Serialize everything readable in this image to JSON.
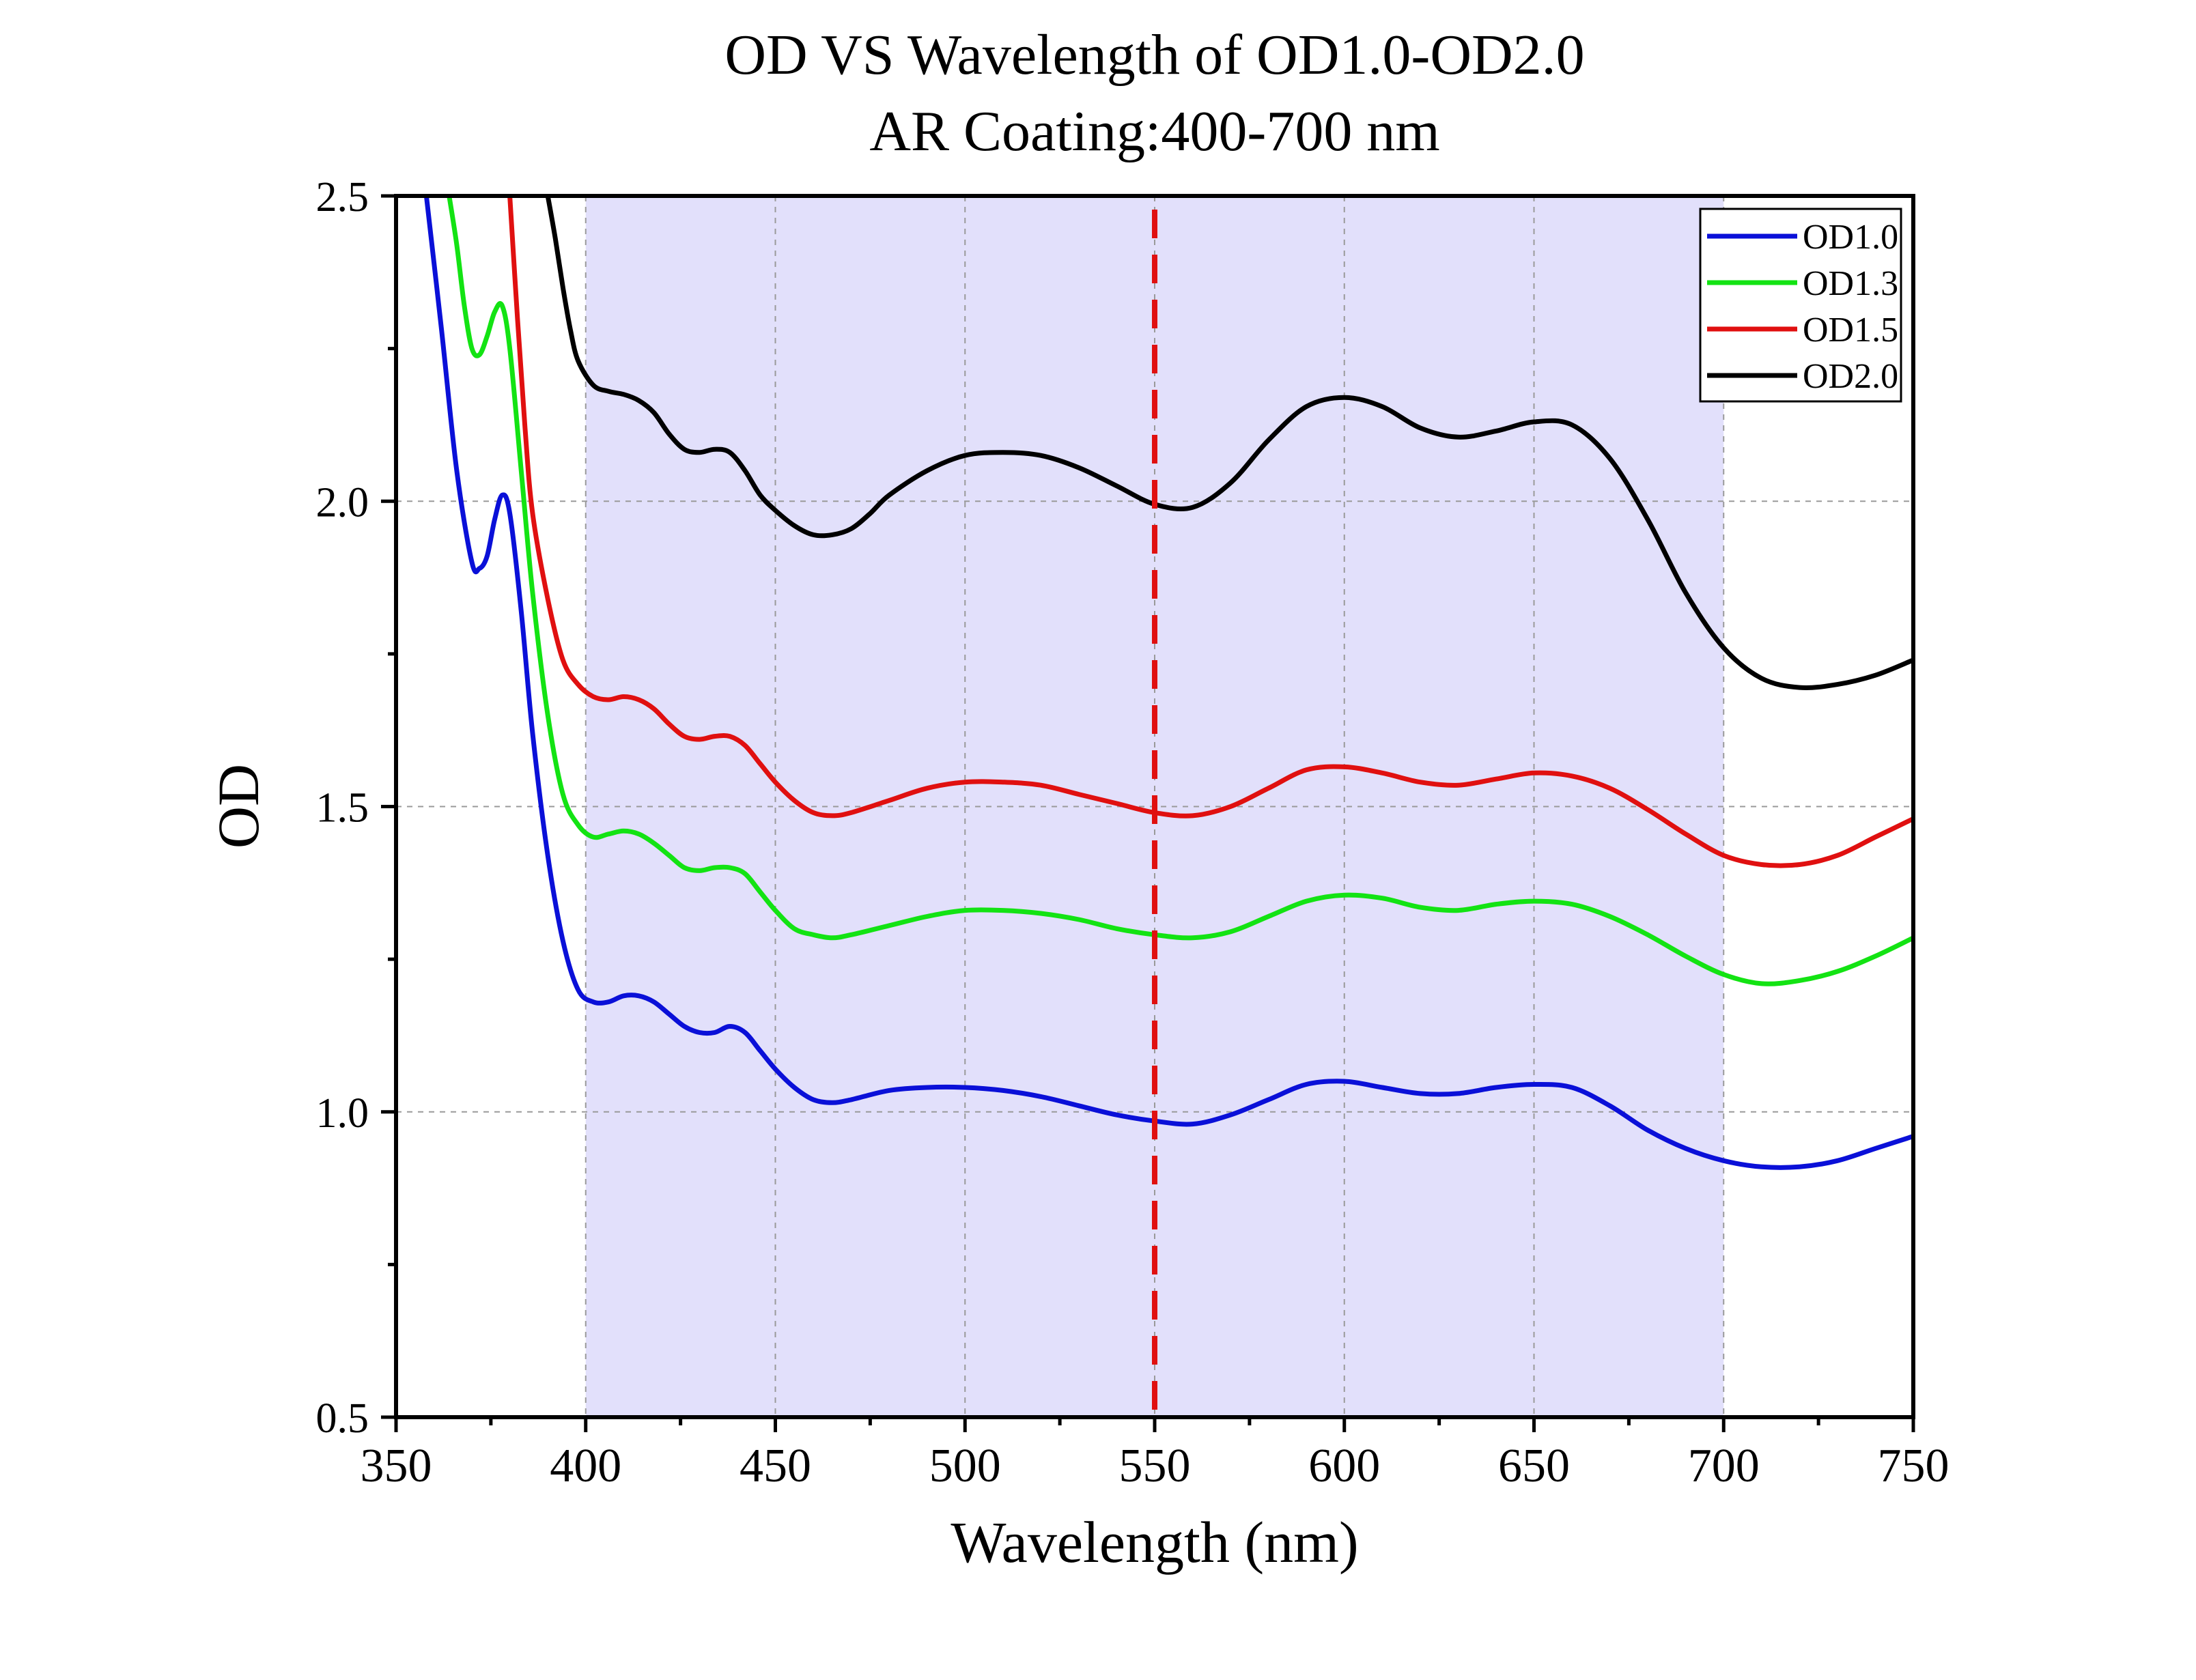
{
  "chart_data": {
    "type": "line",
    "title": "OD VS Wavelength of OD1.0-OD2.0",
    "subtitle": "AR Coating:400-700 nm",
    "xlabel": "Wavelength (nm)",
    "ylabel": "OD",
    "xlim": [
      350,
      750
    ],
    "ylim": [
      0.5,
      2.5
    ],
    "xticks": [
      "350",
      "400",
      "450",
      "500",
      "550",
      "600",
      "650",
      "700",
      "750"
    ],
    "yticks": [
      "0.5",
      "1.0",
      "1.5",
      "2.0",
      "2.5"
    ],
    "grid": true,
    "legend_position": "top-right",
    "shaded_range": [
      400,
      700
    ],
    "shaded_color": "#e2e0fb",
    "marker_line": {
      "x": 550,
      "color": "#e01010",
      "style": "dashed"
    },
    "series": [
      {
        "name": "OD1.0",
        "color": "#0a10d8",
        "x": [
          358,
          362,
          366,
          370,
          372,
          374,
          376,
          378,
          380,
          383,
          386,
          390,
          394,
          398,
          402,
          406,
          410,
          414,
          418,
          422,
          426,
          430,
          434,
          438,
          442,
          446,
          450,
          455,
          460,
          465,
          470,
          480,
          490,
          500,
          510,
          520,
          530,
          540,
          550,
          560,
          570,
          580,
          590,
          600,
          610,
          620,
          630,
          640,
          650,
          660,
          670,
          680,
          690,
          700,
          710,
          720,
          730,
          740,
          750
        ],
        "y": [
          2.5,
          2.28,
          2.05,
          1.9,
          1.89,
          1.91,
          1.97,
          2.01,
          1.98,
          1.82,
          1.62,
          1.42,
          1.28,
          1.2,
          1.18,
          1.18,
          1.19,
          1.19,
          1.18,
          1.16,
          1.14,
          1.13,
          1.13,
          1.14,
          1.13,
          1.1,
          1.07,
          1.04,
          1.02,
          1.015,
          1.02,
          1.035,
          1.04,
          1.04,
          1.035,
          1.025,
          1.01,
          0.995,
          0.985,
          0.98,
          0.995,
          1.02,
          1.045,
          1.05,
          1.04,
          1.03,
          1.03,
          1.04,
          1.045,
          1.04,
          1.01,
          0.97,
          0.94,
          0.92,
          0.91,
          0.91,
          0.92,
          0.94,
          0.96
        ]
      },
      {
        "name": "OD1.3",
        "color": "#13e313",
        "x": [
          364,
          366,
          368,
          370,
          372,
          374,
          376,
          378,
          380,
          383,
          386,
          390,
          394,
          398,
          402,
          406,
          410,
          414,
          418,
          422,
          426,
          430,
          434,
          438,
          442,
          446,
          450,
          455,
          460,
          465,
          470,
          480,
          490,
          500,
          510,
          520,
          530,
          540,
          550,
          560,
          570,
          580,
          590,
          600,
          610,
          620,
          630,
          640,
          650,
          660,
          670,
          680,
          690,
          700,
          710,
          720,
          730,
          740,
          750
        ],
        "y": [
          2.5,
          2.42,
          2.32,
          2.25,
          2.24,
          2.27,
          2.31,
          2.32,
          2.25,
          2.05,
          1.85,
          1.65,
          1.52,
          1.47,
          1.45,
          1.455,
          1.46,
          1.455,
          1.44,
          1.42,
          1.4,
          1.395,
          1.4,
          1.4,
          1.39,
          1.36,
          1.33,
          1.3,
          1.29,
          1.285,
          1.29,
          1.305,
          1.32,
          1.33,
          1.33,
          1.325,
          1.315,
          1.3,
          1.29,
          1.285,
          1.295,
          1.32,
          1.345,
          1.355,
          1.35,
          1.335,
          1.33,
          1.34,
          1.345,
          1.34,
          1.32,
          1.29,
          1.255,
          1.225,
          1.21,
          1.215,
          1.23,
          1.255,
          1.285
        ]
      },
      {
        "name": "OD1.5",
        "color": "#e01010",
        "x": [
          380,
          382,
          384,
          386,
          390,
          394,
          398,
          402,
          406,
          410,
          414,
          418,
          422,
          426,
          430,
          434,
          438,
          442,
          446,
          450,
          455,
          460,
          465,
          470,
          480,
          490,
          500,
          510,
          520,
          530,
          540,
          550,
          560,
          570,
          580,
          590,
          600,
          610,
          620,
          630,
          640,
          650,
          660,
          670,
          680,
          690,
          700,
          710,
          720,
          730,
          740,
          750
        ],
        "y": [
          2.5,
          2.3,
          2.12,
          1.98,
          1.84,
          1.74,
          1.7,
          1.68,
          1.675,
          1.68,
          1.675,
          1.66,
          1.635,
          1.615,
          1.61,
          1.615,
          1.615,
          1.6,
          1.57,
          1.54,
          1.51,
          1.49,
          1.485,
          1.49,
          1.51,
          1.53,
          1.54,
          1.54,
          1.535,
          1.52,
          1.505,
          1.49,
          1.485,
          1.5,
          1.53,
          1.56,
          1.565,
          1.555,
          1.54,
          1.535,
          1.545,
          1.555,
          1.55,
          1.53,
          1.495,
          1.455,
          1.42,
          1.405,
          1.405,
          1.42,
          1.45,
          1.48
        ]
      },
      {
        "name": "OD2.0",
        "color": "#000000",
        "x": [
          390,
          392,
          394,
          396,
          398,
          402,
          406,
          410,
          414,
          418,
          422,
          426,
          430,
          434,
          438,
          442,
          446,
          450,
          455,
          460,
          465,
          470,
          475,
          480,
          490,
          500,
          510,
          520,
          530,
          540,
          550,
          560,
          570,
          580,
          590,
          600,
          610,
          620,
          630,
          640,
          650,
          660,
          670,
          680,
          690,
          700,
          710,
          720,
          730,
          740,
          750
        ],
        "y": [
          2.5,
          2.43,
          2.35,
          2.28,
          2.23,
          2.19,
          2.18,
          2.175,
          2.165,
          2.145,
          2.11,
          2.085,
          2.08,
          2.085,
          2.08,
          2.05,
          2.01,
          1.985,
          1.96,
          1.945,
          1.945,
          1.955,
          1.98,
          2.01,
          2.05,
          2.075,
          2.08,
          2.075,
          2.055,
          2.025,
          1.995,
          1.99,
          2.03,
          2.1,
          2.155,
          2.17,
          2.155,
          2.12,
          2.105,
          2.115,
          2.13,
          2.125,
          2.07,
          1.97,
          1.85,
          1.76,
          1.71,
          1.695,
          1.7,
          1.715,
          1.74
        ]
      }
    ]
  }
}
